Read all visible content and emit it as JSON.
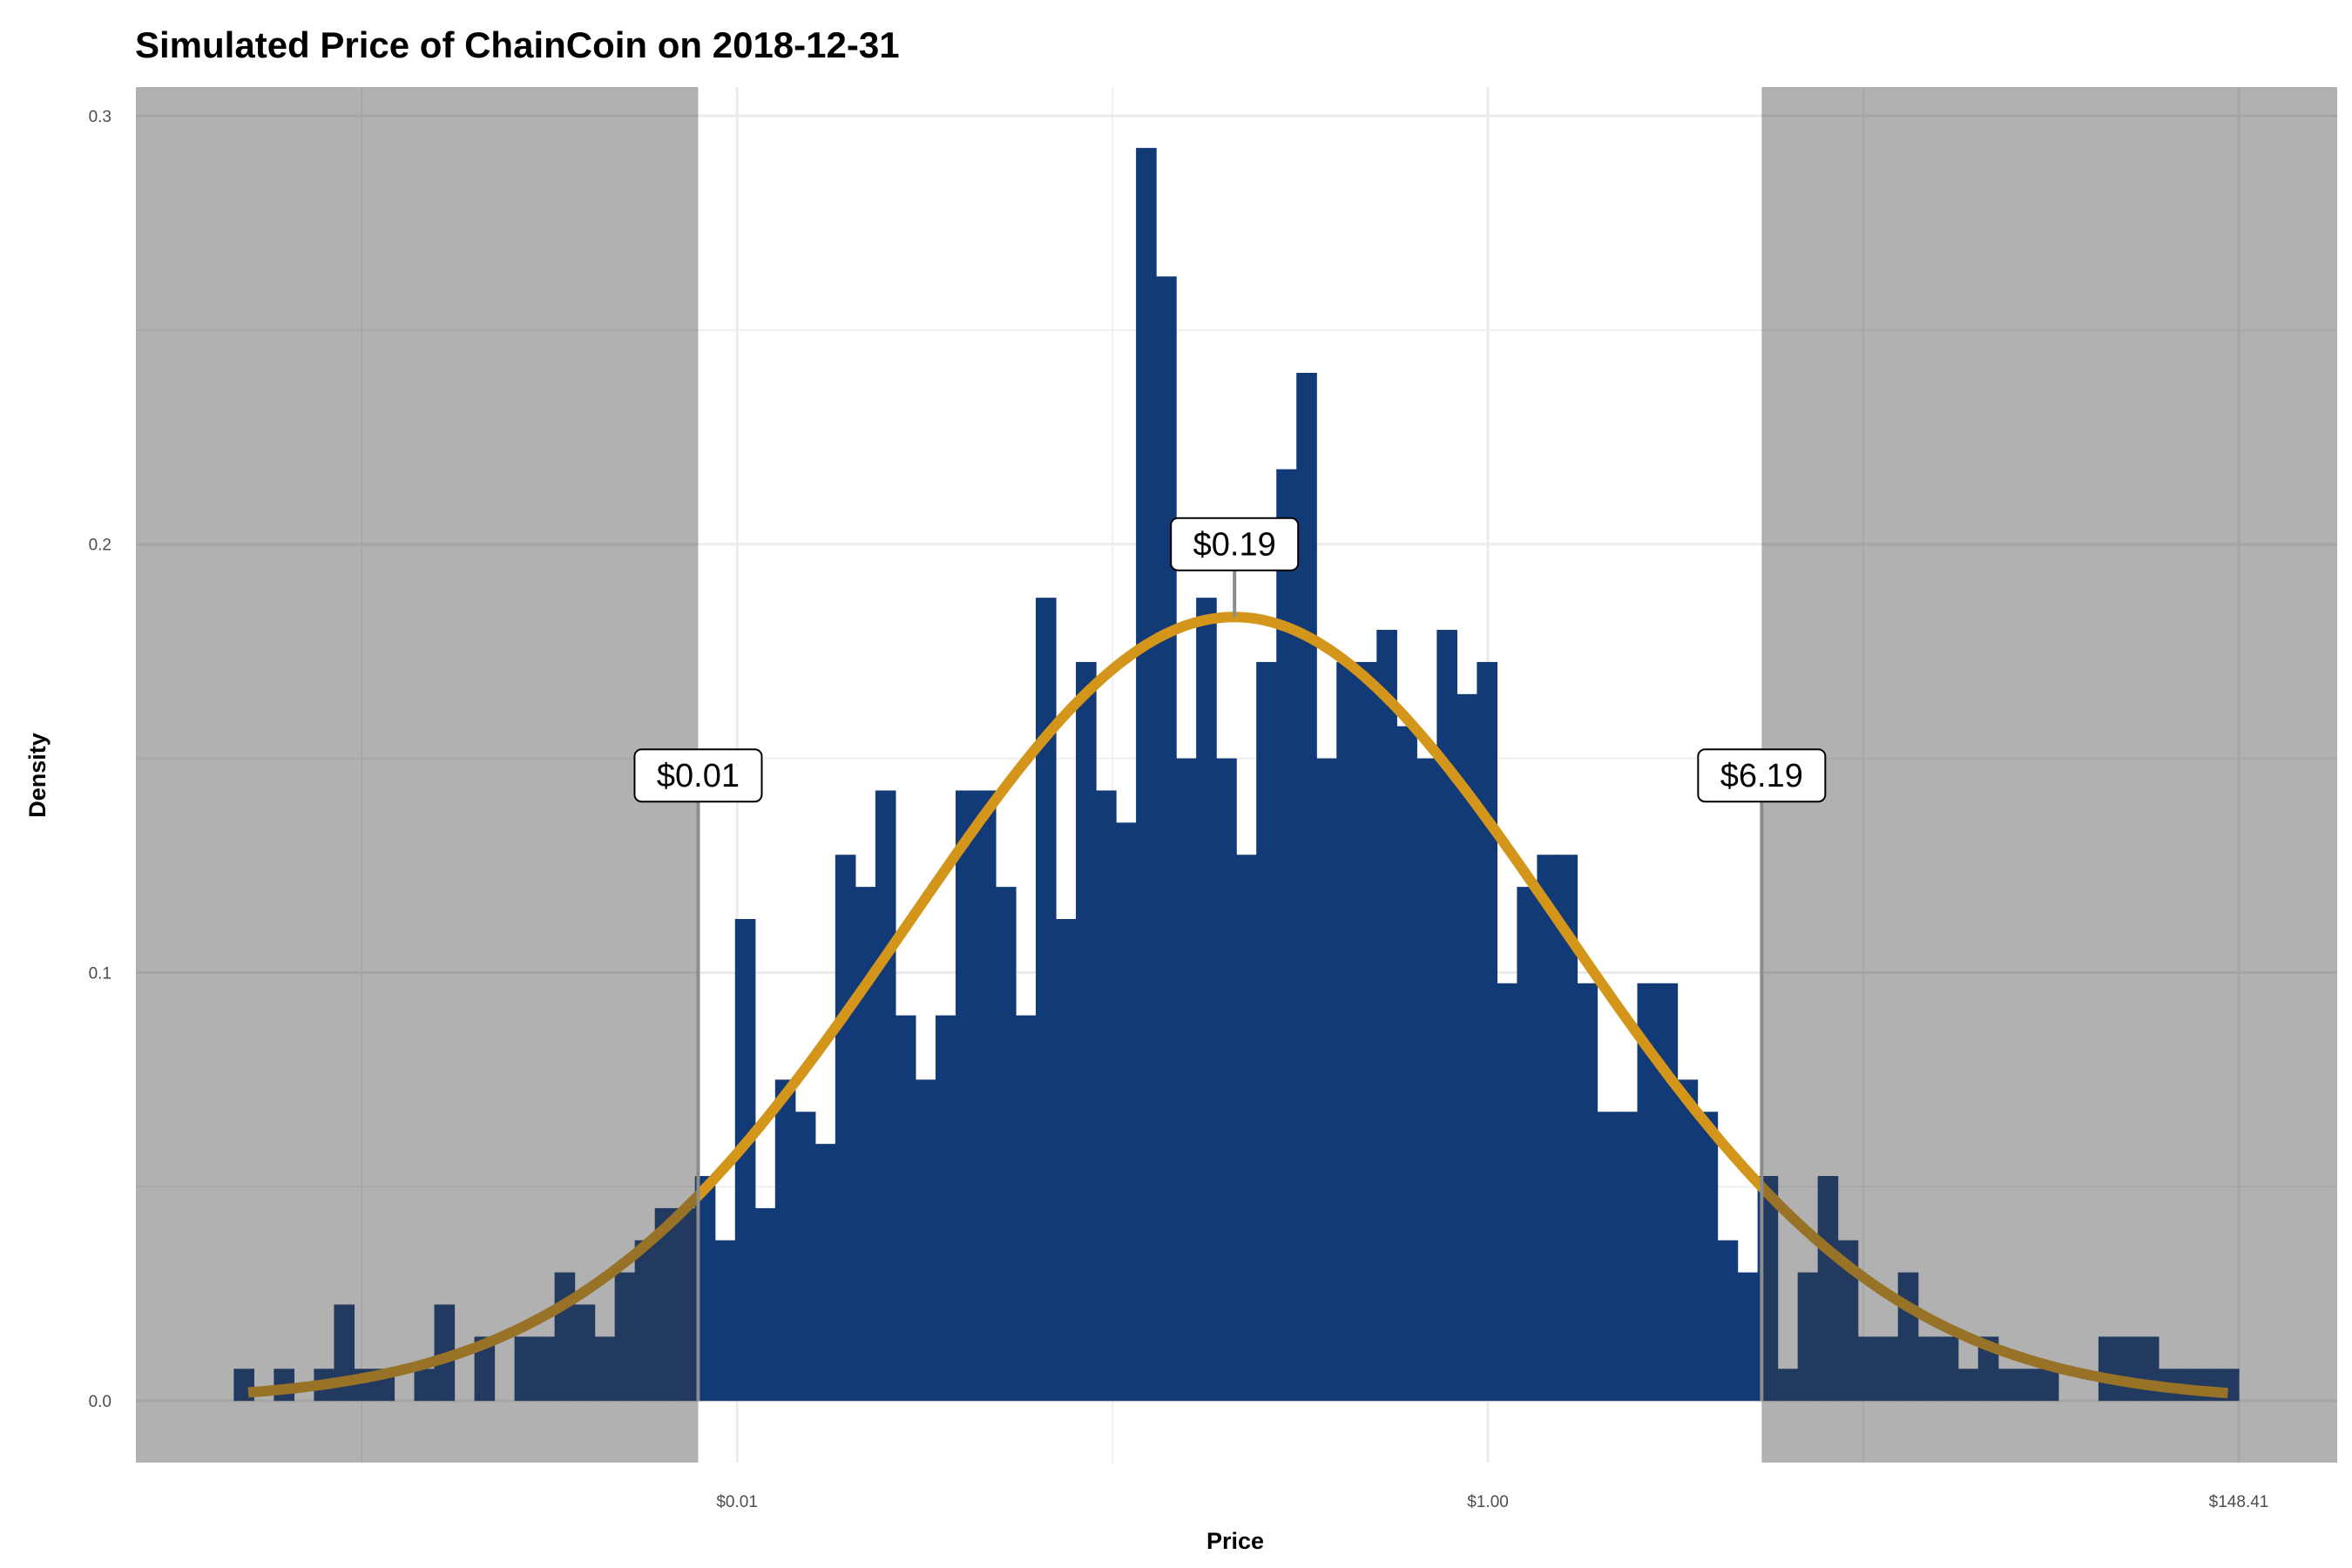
{
  "chart_data": {
    "type": "bar",
    "subtype": "histogram",
    "title": "Simulated Price of ChainCoin on 2018-12-31",
    "xlabel": "Price",
    "ylabel": "Density",
    "x_scale": "log",
    "xlim": [
      0.000123,
      285.8
    ],
    "ylim": [
      -0.0144,
      0.3067
    ],
    "grid": true,
    "x_ticks": [
      {
        "value": 0.0067379,
        "label": "$0.01"
      },
      {
        "value": 1.0,
        "label": "$1.00"
      },
      {
        "value": 148.41,
        "label": "$148.41"
      }
    ],
    "x_minor_ticks": [
      0.00055308,
      0.082085,
      12.1825
    ],
    "y_ticks": [
      {
        "value": 0.0,
        "label": "0.0"
      },
      {
        "value": 0.1,
        "label": "0.1"
      },
      {
        "value": 0.2,
        "label": "0.2"
      },
      {
        "value": 0.3,
        "label": "0.3"
      }
    ],
    "y_minor_ticks": [
      0.05,
      0.15,
      0.25
    ],
    "bins": {
      "first_edge_price": 0.000236,
      "last_edge_price": 148.4,
      "n_bins": 100
    },
    "density": [
      0.0075,
      0,
      0.0075,
      0,
      0.0075,
      0.0225,
      0.0075,
      0.0075,
      0,
      0.0075,
      0.0225,
      0,
      0.015,
      0,
      0.015,
      0.015,
      0.03,
      0.0225,
      0.015,
      0.03,
      0.0375,
      0.045,
      0.045,
      0.0525,
      0.0375,
      0.1125,
      0.045,
      0.075,
      0.0675,
      0.06,
      0.1275,
      0.12,
      0.1425,
      0.09,
      0.075,
      0.09,
      0.1425,
      0.1425,
      0.12,
      0.09,
      0.1875,
      0.1125,
      0.1725,
      0.1425,
      0.135,
      0.2925,
      0.2625,
      0.15,
      0.1875,
      0.15,
      0.1275,
      0.1725,
      0.2175,
      0.24,
      0.15,
      0.1725,
      0.1725,
      0.18,
      0.1575,
      0.15,
      0.18,
      0.165,
      0.1725,
      0.0975,
      0.12,
      0.1275,
      0.1275,
      0.0975,
      0.0675,
      0.0675,
      0.0975,
      0.0975,
      0.075,
      0.0675,
      0.0375,
      0.03,
      0.0525,
      0.0075,
      0.03,
      0.0525,
      0.0375,
      0.015,
      0.015,
      0.03,
      0.015,
      0.015,
      0.0075,
      0.015,
      0.0075,
      0.0075,
      0.0075,
      0,
      0,
      0.015,
      0.015,
      0.015,
      0.0075,
      0.0075,
      0.0075,
      0.0075
    ],
    "fit_curve": {
      "distribution": "lognormal",
      "meanlog": -1.69,
      "sdlog": 2.18,
      "price_range": [
        0.00026,
        138.0
      ]
    },
    "annotations": [
      {
        "label": "$0.01",
        "price": 0.0052,
        "label_y": 0.146,
        "line_to_y": 0
      },
      {
        "label": "$0.19",
        "price": 0.185,
        "label_y": 0.2,
        "line_to_y": 0.183
      },
      {
        "label": "$6.19",
        "price": 6.19,
        "label_y": 0.146,
        "line_to_y": 0
      }
    ],
    "shaded_regions": [
      {
        "from_price": 0.000123,
        "to_price": 0.0052
      },
      {
        "from_price": 6.19,
        "to_price": 285.8
      }
    ],
    "colors": {
      "bars": "#123a77",
      "curve": "#d4961a",
      "shade": "rgba(60,60,60,0.4)",
      "grid": "#ebebeb",
      "ann_line": "#8c8c8c"
    }
  }
}
